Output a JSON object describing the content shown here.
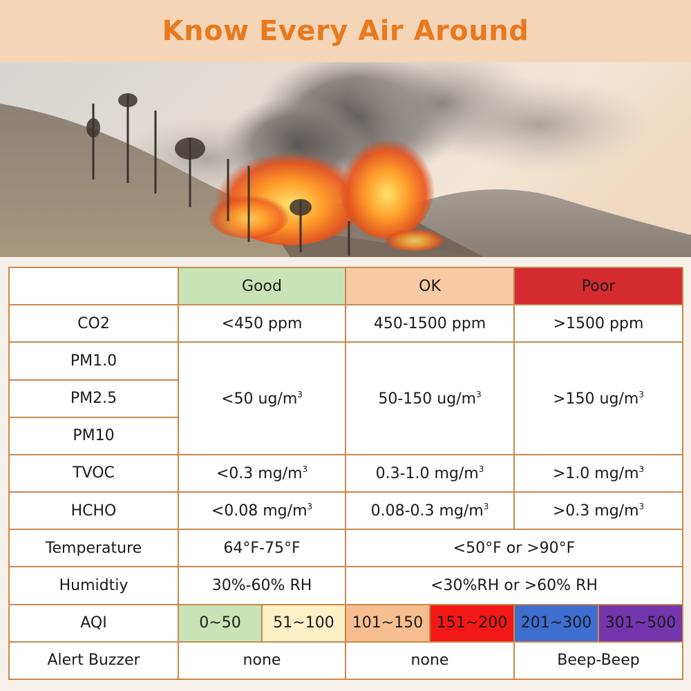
{
  "banner": {
    "title": "Know Every Air Around"
  },
  "colors": {
    "banner_bg": "#f5d5b8",
    "title": "#e8791f",
    "border": "#c9884a",
    "good": "#c8e4b6",
    "ok": "#f7c9a5",
    "poor": "#d42b30",
    "aqi_0_50": "#c8e4b6",
    "aqi_51_100": "#fdf0c6",
    "aqi_101_150": "#f7bd8e",
    "aqi_151_200": "#f11815",
    "aqi_201_300": "#3d6ed0",
    "aqi_301_500": "#7435ad"
  },
  "table": {
    "header": {
      "good": "Good",
      "ok": "OK",
      "poor": "Poor"
    },
    "co2": {
      "label": "CO2",
      "good": "<450 ppm",
      "ok": "450-1500 ppm",
      "poor": ">1500 ppm"
    },
    "pm": {
      "labels": [
        "PM1.0",
        "PM2.5",
        "PM10"
      ],
      "good": "<50 ug/m",
      "ok": "50-150 ug/m",
      "poor": ">150 ug/m",
      "exp": "3"
    },
    "tvoc": {
      "label": "TVOC",
      "good": "<0.3 mg/m",
      "ok": "0.3-1.0 mg/m",
      "poor": ">1.0 mg/m",
      "exp": "3"
    },
    "hcho": {
      "label": "HCHO",
      "good": "<0.08 mg/m",
      "ok": "0.08-0.3 mg/m",
      "poor": ">0.3 mg/m",
      "exp": "3"
    },
    "temperature": {
      "label": "Temperature",
      "good": "64°F-75°F",
      "other": "<50°F or >90°F"
    },
    "humidity": {
      "label": "Humidtiy",
      "good": "30%-60% RH",
      "other": "<30%RH or >60% RH"
    },
    "aqi": {
      "label": "AQI",
      "ranges": [
        "0~50",
        "51~100",
        "101~150",
        "151~200",
        "201~300",
        "301~500"
      ]
    },
    "alert": {
      "label": "Alert Buzzer",
      "good": "none",
      "ok": "none",
      "poor": "Beep-Beep"
    }
  }
}
